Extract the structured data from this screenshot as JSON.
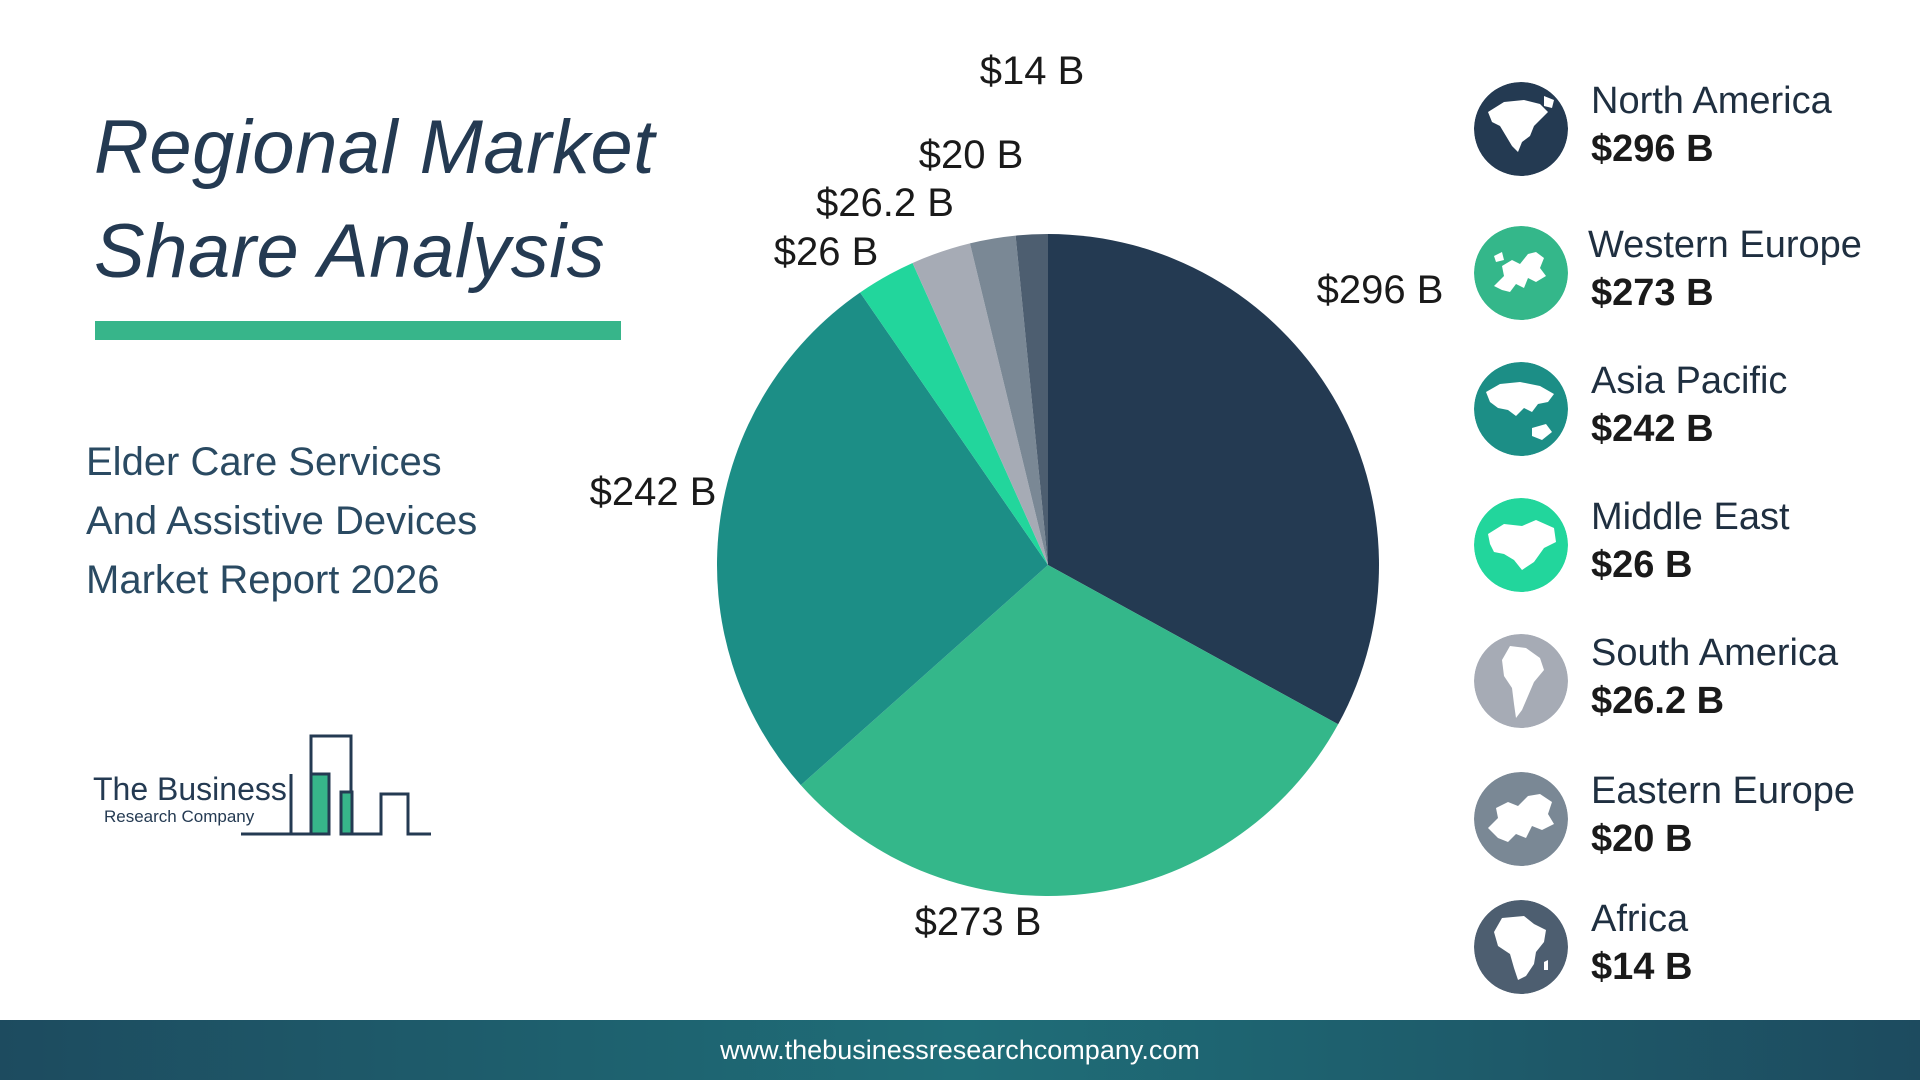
{
  "title": {
    "line1": "Regional Market",
    "line2": "Share Analysis"
  },
  "subtitle": {
    "line1": "Elder Care Services",
    "line2": "And Assistive Devices",
    "line3": "Market Report 2026"
  },
  "logo": {
    "line1": "The Business",
    "line2": "Research Company"
  },
  "footer": {
    "url": "www.thebusinessresearchcompany.com"
  },
  "colors": {
    "north_america": "#243a52",
    "western_europe": "#34b78a",
    "asia_pacific": "#1c8e86",
    "middle_east": "#22d69c",
    "south_america": "#a6abb5",
    "eastern_europe": "#7a8895",
    "africa": "#4d5e70",
    "accent_bar": "#37b58a"
  },
  "legend": [
    {
      "name": "North America",
      "value": "$296 B",
      "icon": "north-america-map-icon"
    },
    {
      "name": "Western Europe",
      "value": "$273 B",
      "icon": "western-europe-map-icon"
    },
    {
      "name": "Asia Pacific",
      "value": "$242 B",
      "icon": "asia-pacific-map-icon"
    },
    {
      "name": "Middle East",
      "value": "$26 B",
      "icon": "middle-east-map-icon"
    },
    {
      "name": "South America",
      "value": "$26.2 B",
      "icon": "south-america-map-icon"
    },
    {
      "name": "Eastern Europe",
      "value": "$20 B",
      "icon": "eastern-europe-map-icon"
    },
    {
      "name": "Africa",
      "value": "$14 B",
      "icon": "africa-map-icon"
    }
  ],
  "chart_data": {
    "type": "pie",
    "categories": [
      "North America",
      "Western Europe",
      "Asia Pacific",
      "Middle East",
      "South America",
      "Eastern Europe",
      "Africa"
    ],
    "values": [
      296,
      273,
      242,
      26,
      26.2,
      20,
      14
    ],
    "labels": [
      "$296 B",
      "$273 B",
      "$242 B",
      "$26 B",
      "$26.2 B",
      "$20 B",
      "$14 B"
    ],
    "colors": [
      "#243a52",
      "#34b78a",
      "#1c8e86",
      "#22d69c",
      "#a6abb5",
      "#7a8895",
      "#4d5e70"
    ],
    "start": "12 o'clock",
    "direction": "clockwise",
    "legend_position": "right"
  }
}
